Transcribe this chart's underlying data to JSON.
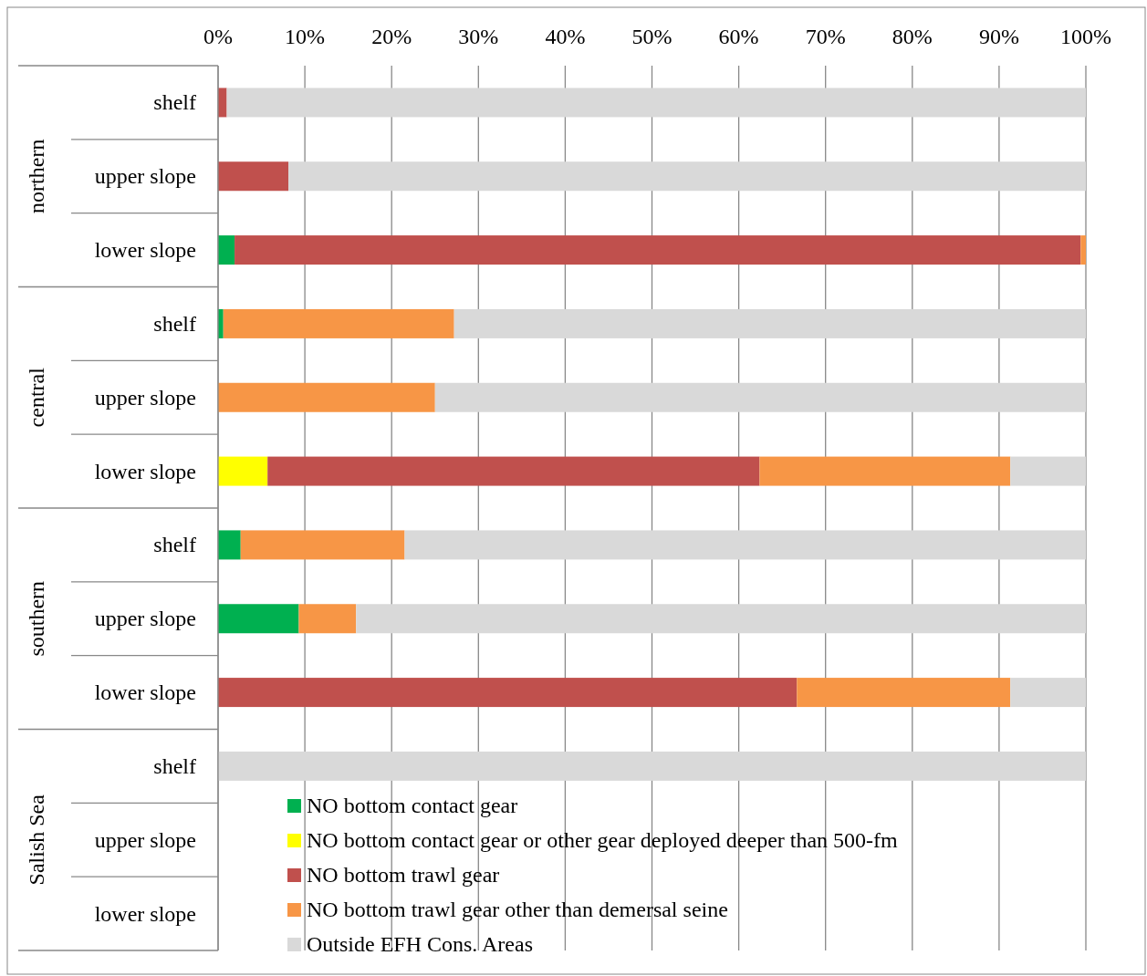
{
  "chart_data": {
    "type": "bar",
    "orientation": "horizontal",
    "stacked": true,
    "categories": [
      "shelf",
      "upper slope",
      "lower slope",
      "shelf",
      "upper slope",
      "lower slope",
      "shelf",
      "upper slope",
      "lower slope",
      "shelf",
      "upper slope",
      "lower slope"
    ],
    "series": [
      {
        "name": "NO bottom contact gear",
        "color": "#00b050",
        "values": [
          null,
          null,
          1.9,
          0.6,
          null,
          null,
          2.6,
          9.3,
          null,
          null,
          null,
          null
        ]
      },
      {
        "name": "NO bottom contact gear or other gear deployed deeper than 500-fm",
        "color": "#ffff00",
        "values": [
          null,
          null,
          null,
          null,
          null,
          5.7,
          null,
          null,
          null,
          null,
          null,
          null
        ]
      },
      {
        "name": "NO bottom trawl gear",
        "color": "#c0504d",
        "values": [
          1.0,
          8.1,
          97.5,
          null,
          null,
          56.7,
          null,
          null,
          66.7,
          null,
          null,
          null
        ]
      },
      {
        "name": "NO bottom trawl gear other than demersal seine",
        "color": "#f79646",
        "values": [
          null,
          null,
          0.6,
          26.6,
          25.0,
          28.9,
          18.9,
          6.6,
          24.6,
          null,
          null,
          null
        ]
      },
      {
        "name": "Outside EFH Cons. Areas",
        "color": "#d9d9d9",
        "values": [
          99.0,
          91.9,
          null,
          72.8,
          75.0,
          8.7,
          78.5,
          84.1,
          8.7,
          100,
          null,
          null
        ]
      }
    ],
    "xlim": [
      0,
      100
    ],
    "xticks": [
      {
        "value": 0,
        "label": "0%"
      },
      {
        "value": 10,
        "label": "10%"
      },
      {
        "value": 20,
        "label": "20%"
      },
      {
        "value": 30,
        "label": "30%"
      },
      {
        "value": 40,
        "label": "40%"
      },
      {
        "value": 50,
        "label": "50%"
      },
      {
        "value": 60,
        "label": "60%"
      },
      {
        "value": 70,
        "label": "70%"
      },
      {
        "value": 80,
        "label": "80%"
      },
      {
        "value": 90,
        "label": "90%"
      },
      {
        "value": 100,
        "label": "100%"
      }
    ],
    "grid": "x",
    "legend": "bottom",
    "annotations": [
      "northern",
      "central",
      "southern",
      "Salish Sea"
    ]
  }
}
